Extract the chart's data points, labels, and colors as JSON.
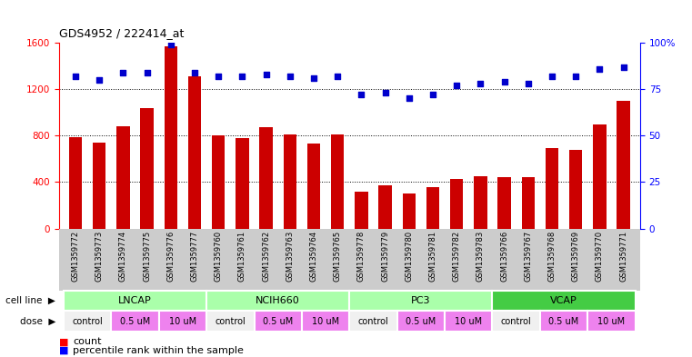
{
  "title": "GDS4952 / 222414_at",
  "samples": [
    "GSM1359772",
    "GSM1359773",
    "GSM1359774",
    "GSM1359775",
    "GSM1359776",
    "GSM1359777",
    "GSM1359760",
    "GSM1359761",
    "GSM1359762",
    "GSM1359763",
    "GSM1359764",
    "GSM1359765",
    "GSM1359778",
    "GSM1359779",
    "GSM1359780",
    "GSM1359781",
    "GSM1359782",
    "GSM1359783",
    "GSM1359766",
    "GSM1359767",
    "GSM1359768",
    "GSM1359769",
    "GSM1359770",
    "GSM1359771"
  ],
  "counts": [
    790,
    740,
    880,
    1040,
    1570,
    1310,
    800,
    780,
    870,
    810,
    730,
    810,
    320,
    370,
    300,
    360,
    430,
    450,
    440,
    440,
    690,
    680,
    900,
    1100
  ],
  "percentiles": [
    82,
    80,
    84,
    84,
    99,
    84,
    82,
    82,
    83,
    82,
    81,
    82,
    72,
    73,
    70,
    72,
    77,
    78,
    79,
    78,
    82,
    82,
    86,
    87
  ],
  "cell_lines": [
    {
      "name": "LNCAP",
      "start": 0,
      "end": 6,
      "color": "#aaffaa"
    },
    {
      "name": "NCIH660",
      "start": 6,
      "end": 12,
      "color": "#aaffaa"
    },
    {
      "name": "PC3",
      "start": 12,
      "end": 18,
      "color": "#aaffaa"
    },
    {
      "name": "VCAP",
      "start": 18,
      "end": 24,
      "color": "#44cc44"
    }
  ],
  "dose_groups": [
    {
      "name": "control",
      "start": 0,
      "end": 2,
      "color": "#f0f0f0"
    },
    {
      "name": "0.5 uM",
      "start": 2,
      "end": 4,
      "color": "#ee82ee"
    },
    {
      "name": "10 uM",
      "start": 4,
      "end": 6,
      "color": "#ee82ee"
    },
    {
      "name": "control",
      "start": 6,
      "end": 8,
      "color": "#f0f0f0"
    },
    {
      "name": "0.5 uM",
      "start": 8,
      "end": 10,
      "color": "#ee82ee"
    },
    {
      "name": "10 uM",
      "start": 10,
      "end": 12,
      "color": "#ee82ee"
    },
    {
      "name": "control",
      "start": 12,
      "end": 14,
      "color": "#f0f0f0"
    },
    {
      "name": "0.5 uM",
      "start": 14,
      "end": 16,
      "color": "#ee82ee"
    },
    {
      "name": "10 uM",
      "start": 16,
      "end": 18,
      "color": "#ee82ee"
    },
    {
      "name": "control",
      "start": 18,
      "end": 20,
      "color": "#f0f0f0"
    },
    {
      "name": "0.5 uM",
      "start": 20,
      "end": 22,
      "color": "#ee82ee"
    },
    {
      "name": "10 uM",
      "start": 22,
      "end": 24,
      "color": "#ee82ee"
    }
  ],
  "bar_color": "#cc0000",
  "dot_color": "#0000cc",
  "ylim_left": [
    0,
    1600
  ],
  "ylim_right": [
    0,
    100
  ],
  "yticks_left": [
    0,
    400,
    800,
    1200,
    1600
  ],
  "yticks_right": [
    0,
    25,
    50,
    75,
    100
  ],
  "grid_values": [
    400,
    800,
    1200
  ],
  "background_color": "#ffffff"
}
